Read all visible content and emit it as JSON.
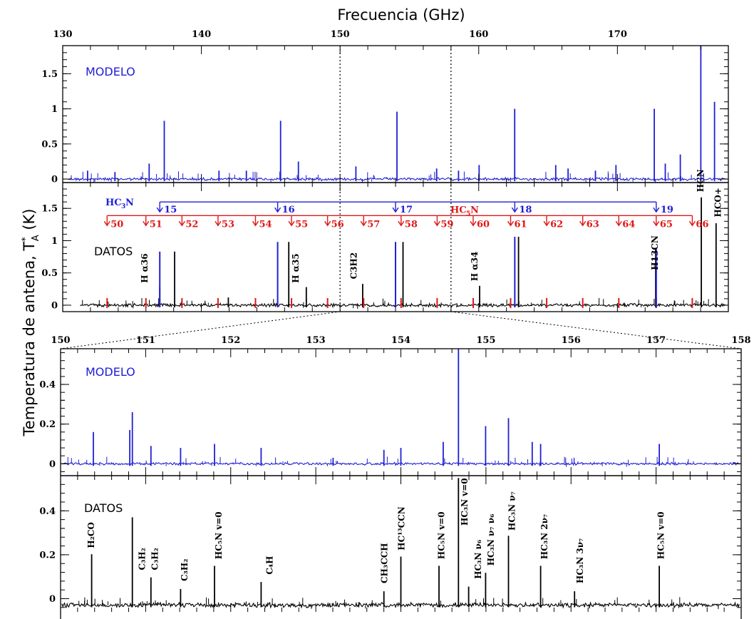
{
  "colors": {
    "model": "#1f1fd6",
    "data": "#000000",
    "hc5n": "#e01818",
    "hc3n": "#1f1fd6"
  },
  "chart_data": [
    {
      "panel": "top-model",
      "type": "line",
      "label": "MODELO",
      "xlabel": "Frecuencia (GHz)",
      "xlim": [
        130,
        178
      ],
      "xticks": [
        130,
        140,
        150,
        160,
        170
      ],
      "ylim": [
        -0.05,
        1.9
      ],
      "yticks": [
        0,
        0.5,
        1,
        1.5
      ],
      "yticklabels": [
        "0",
        "0.5",
        "1",
        "1.5"
      ],
      "grid": false,
      "peaks": [
        {
          "x": 131.4,
          "y": 0.12
        },
        {
          "x": 133.4,
          "y": 0.1
        },
        {
          "x": 135.9,
          "y": 0.22
        },
        {
          "x": 137.0,
          "y": 0.83
        },
        {
          "x": 141.0,
          "y": 0.12
        },
        {
          "x": 143.0,
          "y": 0.12
        },
        {
          "x": 145.5,
          "y": 0.83
        },
        {
          "x": 146.8,
          "y": 0.25
        },
        {
          "x": 151.0,
          "y": 0.18
        },
        {
          "x": 154.0,
          "y": 0.96
        },
        {
          "x": 156.9,
          "y": 0.15
        },
        {
          "x": 158.5,
          "y": 0.12
        },
        {
          "x": 160.0,
          "y": 0.2
        },
        {
          "x": 162.6,
          "y": 1.0
        },
        {
          "x": 165.6,
          "y": 0.2
        },
        {
          "x": 166.5,
          "y": 0.15
        },
        {
          "x": 168.5,
          "y": 0.12
        },
        {
          "x": 170.0,
          "y": 0.2
        },
        {
          "x": 172.8,
          "y": 1.0
        },
        {
          "x": 173.6,
          "y": 0.22
        },
        {
          "x": 174.7,
          "y": 0.35
        },
        {
          "x": 176.2,
          "y": 1.9
        },
        {
          "x": 177.2,
          "y": 1.1
        }
      ]
    },
    {
      "panel": "top-data",
      "type": "line",
      "label": "DATOS",
      "xlim": [
        130,
        178
      ],
      "ylim": [
        -0.1,
        1.9
      ],
      "yticks": [
        0,
        0.5,
        1,
        1.5
      ],
      "yticklabels": [
        "0",
        "0.5",
        "1",
        "1.5"
      ],
      "peaks": [
        {
          "x": 135.9,
          "y": 0.28
        },
        {
          "x": 137.0,
          "y": 0.83
        },
        {
          "x": 141.0,
          "y": 0.12
        },
        {
          "x": 145.5,
          "y": 0.98
        },
        {
          "x": 146.8,
          "y": 0.28
        },
        {
          "x": 151.0,
          "y": 0.33
        },
        {
          "x": 154.0,
          "y": 0.98
        },
        {
          "x": 159.7,
          "y": 0.3
        },
        {
          "x": 162.6,
          "y": 1.06
        },
        {
          "x": 172.8,
          "y": 0.87
        },
        {
          "x": 176.2,
          "y": 1.67
        },
        {
          "x": 177.3,
          "y": 1.27
        }
      ],
      "annotations": [
        "H α36",
        "H α35",
        "C3H2",
        "H α34",
        "H13CN",
        "HCN",
        "HCO+"
      ],
      "hc3n": {
        "name": "HC3N",
        "y": 1.6,
        "lines": [
          {
            "label": "15",
            "x": 137.0
          },
          {
            "label": "16",
            "x": 145.5
          },
          {
            "label": "17",
            "x": 154.0
          },
          {
            "label": "18",
            "x": 162.6
          },
          {
            "label": "19",
            "x": 172.8
          }
        ]
      },
      "hc5n": {
        "name": "HC5N",
        "y": 1.3,
        "lines": [
          {
            "label": "50",
            "x": 133.2
          },
          {
            "label": "51",
            "x": 136.0
          },
          {
            "label": "52",
            "x": 138.6
          },
          {
            "label": "53",
            "x": 141.2
          },
          {
            "label": "54",
            "x": 143.9
          },
          {
            "label": "55",
            "x": 146.5
          },
          {
            "label": "56",
            "x": 149.1
          },
          {
            "label": "57",
            "x": 151.7
          },
          {
            "label": "58",
            "x": 154.4
          },
          {
            "label": "59",
            "x": 157.0
          },
          {
            "label": "60",
            "x": 159.6
          },
          {
            "label": "61",
            "x": 162.3
          },
          {
            "label": "62",
            "x": 164.9
          },
          {
            "label": "63",
            "x": 167.5
          },
          {
            "label": "64",
            "x": 170.1
          },
          {
            "label": "65",
            "x": 172.8
          },
          {
            "label": "66",
            "x": 175.4
          }
        ]
      },
      "dashed_x": [
        150,
        158
      ]
    },
    {
      "panel": "zoom-model",
      "type": "line",
      "label": "MODELO",
      "xlim": [
        150,
        158
      ],
      "xticks": [
        150,
        151,
        152,
        153,
        154,
        155,
        156,
        157,
        158
      ],
      "ylim": [
        -0.06,
        0.58
      ],
      "yticks": [
        0,
        0.2,
        0.4
      ],
      "yticklabels": [
        "0",
        "0.2",
        "0.4"
      ],
      "peaks": [
        {
          "x": 150.37,
          "y": 0.16
        },
        {
          "x": 150.8,
          "y": 0.17
        },
        {
          "x": 150.83,
          "y": 0.26
        },
        {
          "x": 151.05,
          "y": 0.09
        },
        {
          "x": 151.4,
          "y": 0.08
        },
        {
          "x": 151.8,
          "y": 0.1
        },
        {
          "x": 152.35,
          "y": 0.08
        },
        {
          "x": 153.2,
          "y": 0.03
        },
        {
          "x": 153.8,
          "y": 0.07
        },
        {
          "x": 154.0,
          "y": 0.08
        },
        {
          "x": 154.5,
          "y": 0.11
        },
        {
          "x": 154.68,
          "y": 0.58
        },
        {
          "x": 155.0,
          "y": 0.19
        },
        {
          "x": 155.27,
          "y": 0.23
        },
        {
          "x": 155.55,
          "y": 0.11
        },
        {
          "x": 155.65,
          "y": 0.1
        },
        {
          "x": 157.05,
          "y": 0.1
        }
      ]
    },
    {
      "panel": "zoom-data",
      "type": "line",
      "label": "DATOS",
      "xlim": [
        150,
        158
      ],
      "ylim": [
        -0.06,
        0.56
      ],
      "yticks": [
        0,
        0.2,
        0.4
      ],
      "yticklabels": [
        "0",
        "0.2",
        "0.4"
      ],
      "peaks": [
        {
          "x": 150.35,
          "y": 0.22
        },
        {
          "x": 150.83,
          "y": 0.38
        },
        {
          "x": 151.05,
          "y": 0.12
        },
        {
          "x": 151.4,
          "y": 0.07
        },
        {
          "x": 151.8,
          "y": 0.17
        },
        {
          "x": 152.35,
          "y": 0.1
        },
        {
          "x": 153.8,
          "y": 0.06
        },
        {
          "x": 154.0,
          "y": 0.21
        },
        {
          "x": 154.45,
          "y": 0.17
        },
        {
          "x": 154.68,
          "y": 0.55
        },
        {
          "x": 154.8,
          "y": 0.08
        },
        {
          "x": 155.0,
          "y": 0.14
        },
        {
          "x": 155.27,
          "y": 0.3
        },
        {
          "x": 155.65,
          "y": 0.17
        },
        {
          "x": 156.05,
          "y": 0.06
        },
        {
          "x": 157.05,
          "y": 0.17
        }
      ],
      "annotations": [
        {
          "text": "H₂CO",
          "x": 150.35
        },
        {
          "text": "C₃H₂",
          "x": 150.95
        },
        {
          "text": "C₃H₂",
          "x": 151.1
        },
        {
          "text": "C₃H₂",
          "x": 151.45
        },
        {
          "text": "HC₅N v=0",
          "x": 151.85
        },
        {
          "text": "C₄H",
          "x": 152.45
        },
        {
          "text": "CH₃CCH",
          "x": 153.8
        },
        {
          "text": "HC¹³CCN",
          "x": 154.0
        },
        {
          "text": "HC₅N v=0",
          "x": 154.47
        },
        {
          "text": "HC₃N v=0",
          "x": 154.74
        },
        {
          "text": "HC₃N ν₆",
          "x": 154.9
        },
        {
          "text": "HC₃N ν₇ ν₆",
          "x": 155.05
        },
        {
          "text": "HC₃N ν₇",
          "x": 155.3
        },
        {
          "text": "HC₃N 2ν₇",
          "x": 155.68
        },
        {
          "text": "HC₃N 3ν₇",
          "x": 156.1
        },
        {
          "text": "HC₅N v=0",
          "x": 157.05
        }
      ]
    }
  ],
  "ylabel": "Temperatura de antena, T*A (K)",
  "ylabel_main": "Temperatura de antena, T",
  "ylabel_sup": "*",
  "ylabel_sub": "A",
  "ylabel_unit": " (K)"
}
